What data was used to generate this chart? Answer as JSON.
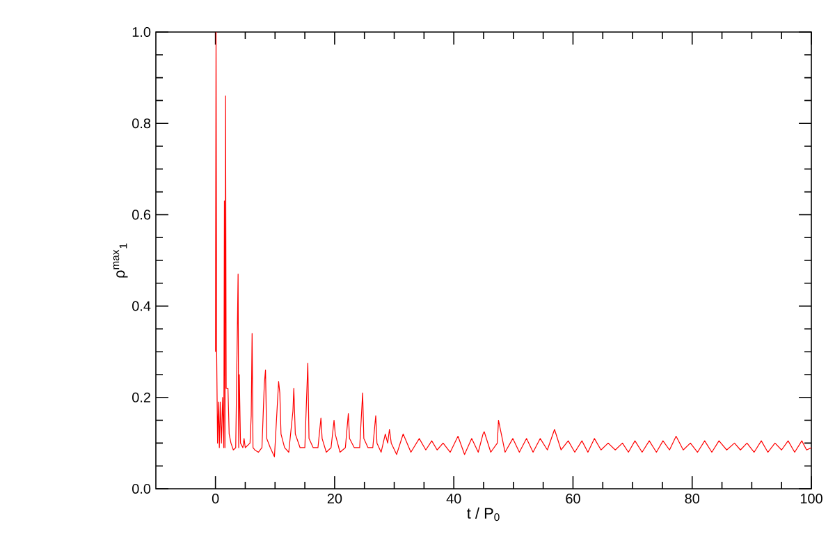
{
  "chart_data": {
    "type": "line",
    "xlabel": "t / P$_{0}$",
    "ylabel": "ρ$^{max}$$_{1}$",
    "xlim": [
      -10,
      100
    ],
    "ylim": [
      0,
      1
    ],
    "xticks": [
      0,
      20,
      40,
      60,
      80,
      100
    ],
    "yticks": [
      {
        "value": 0,
        "label": "0.0"
      },
      0.2,
      0.4,
      0.6,
      0.8,
      {
        "value": 1,
        "label": "1.0"
      }
    ],
    "marker": "none",
    "line_style": "solid",
    "series": [
      {
        "color": "#ff0000",
        "x": [
          0,
          0.1,
          0.2,
          0.35,
          0.5,
          0.65,
          0.8,
          1.0,
          1.2,
          1.4,
          1.5,
          1.6,
          1.7,
          1.8,
          2.1,
          2.3,
          2.6,
          3.0,
          3.4,
          3.8,
          3.9,
          4.0,
          4.2,
          4.6,
          4.8,
          5.0,
          5.8,
          6.0,
          6.15,
          6.3,
          6.6,
          7.2,
          7.8,
          8.2,
          8.4,
          8.6,
          9.2,
          9.9,
          10.6,
          10.8,
          11.0,
          11.6,
          12.3,
          13.0,
          13.15,
          13.4,
          14.2,
          15.0,
          15.5,
          15.7,
          16.4,
          17.2,
          17.7,
          17.9,
          18.6,
          19.4,
          19.9,
          20.1,
          20.9,
          21.8,
          22.3,
          22.5,
          23.3,
          24.2,
          24.7,
          24.9,
          25.6,
          26.4,
          26.9,
          27.1,
          27.8,
          28.5,
          28.9,
          29.2,
          29.5,
          30.4,
          31.5,
          32.8,
          34.2,
          35.3,
          36.3,
          37.2,
          38.2,
          39.4,
          40.7,
          41.8,
          43.0,
          44.1,
          44.9,
          45.1,
          46.2,
          47.3,
          47.5,
          48.6,
          49.9,
          51.0,
          52.2,
          53.3,
          54.5,
          55.7,
          56.9,
          58.0,
          59.2,
          60.3,
          61.5,
          62.5,
          63.6,
          64.7,
          65.9,
          67.1,
          68.3,
          69.3,
          70.4,
          71.6,
          72.8,
          74.0,
          75.1,
          76.2,
          77.3,
          78.5,
          79.7,
          80.9,
          82.1,
          83.3,
          84.5,
          85.8,
          87.1,
          88.1,
          89.2,
          90.4,
          91.6,
          92.7,
          93.9,
          95.0,
          96.1,
          97.2,
          98.4,
          99.2,
          100
        ],
        "values": [
          0.3,
          1.0,
          0.3,
          0.1,
          0.19,
          0.09,
          0.19,
          0.1,
          0.2,
          0.09,
          0.63,
          0.09,
          0.86,
          0.22,
          0.22,
          0.12,
          0.1,
          0.085,
          0.09,
          0.47,
          0.09,
          0.25,
          0.1,
          0.09,
          0.11,
          0.09,
          0.1,
          0.16,
          0.34,
          0.09,
          0.085,
          0.08,
          0.09,
          0.23,
          0.26,
          0.11,
          0.09,
          0.07,
          0.235,
          0.21,
          0.12,
          0.09,
          0.08,
          0.17,
          0.22,
          0.12,
          0.09,
          0.09,
          0.275,
          0.11,
          0.09,
          0.09,
          0.155,
          0.11,
          0.08,
          0.09,
          0.15,
          0.12,
          0.08,
          0.09,
          0.165,
          0.11,
          0.09,
          0.09,
          0.21,
          0.11,
          0.09,
          0.09,
          0.16,
          0.1,
          0.08,
          0.12,
          0.1,
          0.13,
          0.1,
          0.075,
          0.12,
          0.08,
          0.11,
          0.085,
          0.105,
          0.085,
          0.1,
          0.08,
          0.115,
          0.075,
          0.11,
          0.08,
          0.12,
          0.125,
          0.08,
          0.1,
          0.15,
          0.08,
          0.11,
          0.08,
          0.11,
          0.08,
          0.11,
          0.085,
          0.13,
          0.085,
          0.105,
          0.08,
          0.105,
          0.08,
          0.11,
          0.085,
          0.1,
          0.085,
          0.1,
          0.08,
          0.105,
          0.08,
          0.105,
          0.08,
          0.105,
          0.085,
          0.115,
          0.085,
          0.1,
          0.08,
          0.105,
          0.08,
          0.105,
          0.085,
          0.1,
          0.085,
          0.1,
          0.08,
          0.105,
          0.08,
          0.1,
          0.085,
          0.105,
          0.08,
          0.105,
          0.085,
          0.09
        ]
      }
    ]
  }
}
